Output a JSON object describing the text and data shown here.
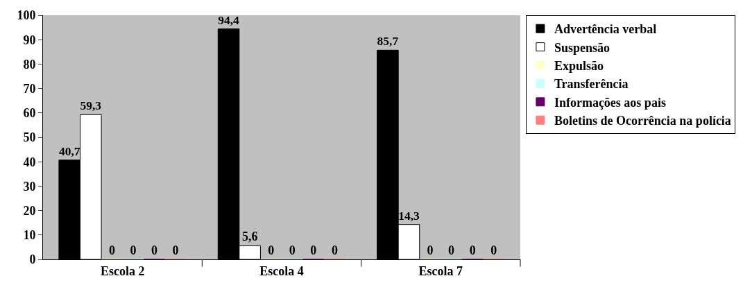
{
  "chart_data": {
    "type": "bar",
    "categories": [
      "Escola 2",
      "Escola 4",
      "Escola 7"
    ],
    "series": [
      {
        "name": "Advertência verbal",
        "color": "#000000",
        "values": [
          40.7,
          94.4,
          85.7
        ],
        "value_labels": [
          "40,7",
          "94,4",
          "85,7"
        ]
      },
      {
        "name": "Suspensão",
        "color": "#ffffff",
        "values": [
          59.3,
          5.6,
          14.3
        ],
        "value_labels": [
          "59,3",
          "5,6",
          "14,3"
        ]
      },
      {
        "name": "Expulsão",
        "color": "#ffffcc",
        "values": [
          0,
          0,
          0
        ],
        "value_labels": [
          "0",
          "0",
          "0"
        ]
      },
      {
        "name": "Transferência",
        "color": "#ccffff",
        "values": [
          0,
          0,
          0
        ],
        "value_labels": [
          "0",
          "0",
          "0"
        ]
      },
      {
        "name": "Informações aos pais",
        "color": "#660066",
        "values": [
          0,
          0,
          0
        ],
        "value_labels": [
          "0",
          "0",
          "0"
        ]
      },
      {
        "name": "Boletins de Ocorrência na polícia",
        "color": "#ff8080",
        "values": [
          0,
          0,
          0
        ],
        "value_labels": [
          "0",
          "0",
          "0"
        ]
      }
    ],
    "ylim": [
      0,
      100
    ],
    "yticks": [
      0,
      10,
      20,
      30,
      40,
      50,
      60,
      70,
      80,
      90,
      100
    ],
    "grid": false,
    "legend": "right"
  }
}
